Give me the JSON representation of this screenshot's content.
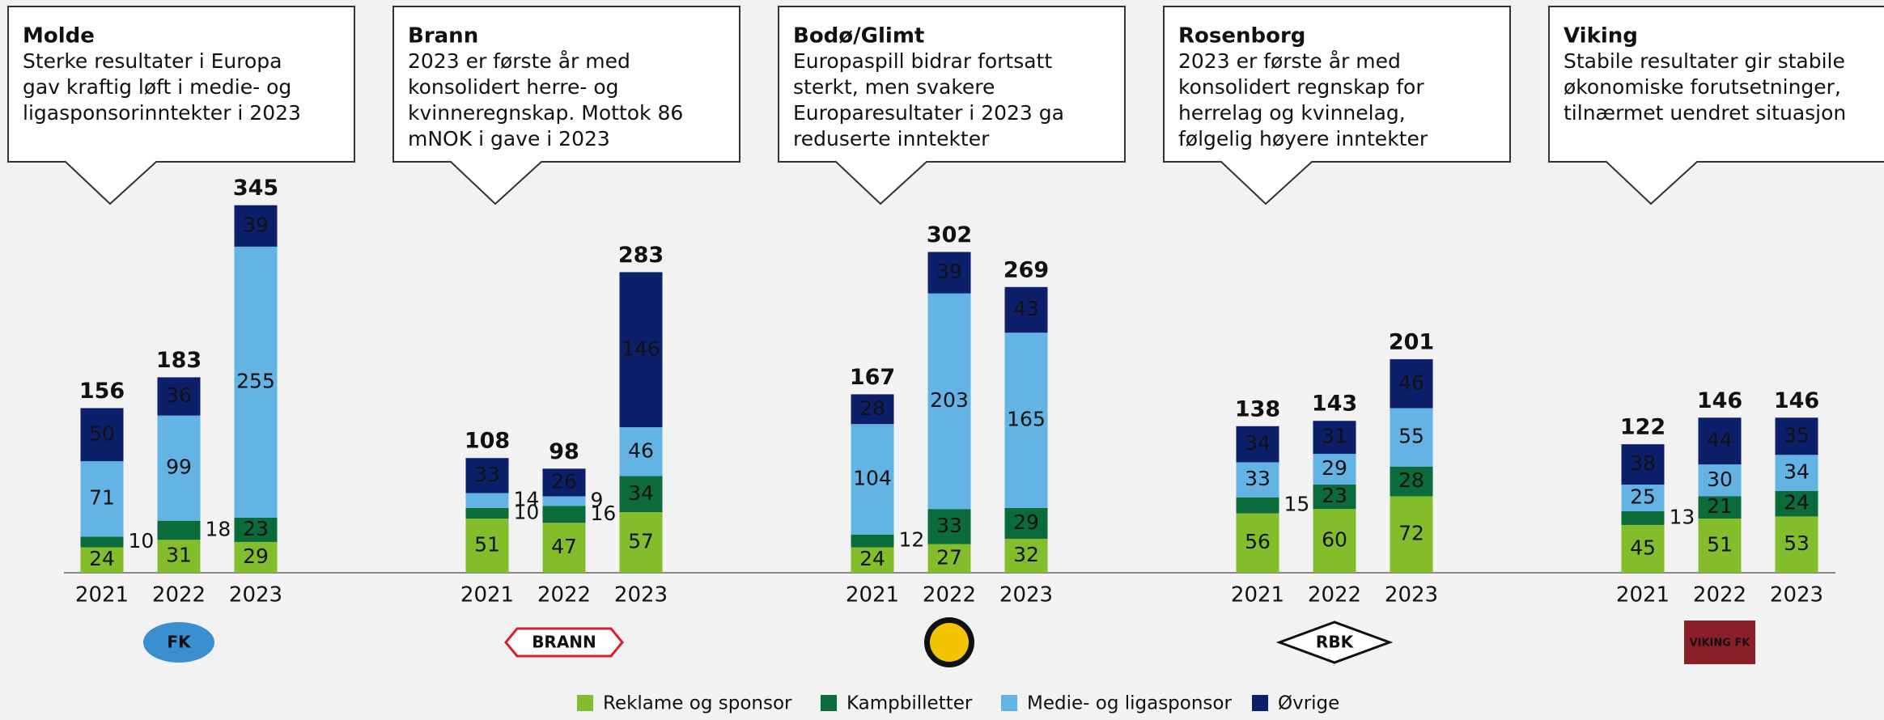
{
  "chart_data": {
    "type": "stacked_bar",
    "series": [
      {
        "name": "Reklame og sponsor",
        "color": "#84bd2b"
      },
      {
        "name": "Kampbilletter",
        "color": "#0b6b3a"
      },
      {
        "name": "Medie- og ligasponsor",
        "color": "#63b3e5"
      },
      {
        "name": "Øvrige",
        "color": "#0c1f6b"
      }
    ],
    "groups": [
      {
        "name": "Molde",
        "note": [
          "Sterke resultater i Europa",
          "gav kraftig løft i medie- og",
          "ligasponsorinntekter i 2023"
        ],
        "logo": "FK",
        "categories": [
          "2021",
          "2022",
          "2023"
        ],
        "totals": [
          156,
          183,
          345
        ],
        "values": [
          [
            24,
            10,
            71,
            50
          ],
          [
            31,
            18,
            99,
            36
          ],
          [
            29,
            23,
            255,
            39
          ]
        ]
      },
      {
        "name": "Brann",
        "note": [
          "2023 er første år med",
          "konsolidert herre- og",
          "kvinneregnskap. Mottok 86",
          "mNOK i gave i 2023"
        ],
        "logo": "BRANN",
        "categories": [
          "2021",
          "2022",
          "2023"
        ],
        "totals": [
          108,
          98,
          283
        ],
        "values": [
          [
            51,
            10,
            14,
            33
          ],
          [
            47,
            16,
            9,
            26
          ],
          [
            57,
            34,
            46,
            146
          ]
        ]
      },
      {
        "name": "Bodø/Glimt",
        "note": [
          "Europaspill bidrar fortsatt",
          "sterkt, men svakere",
          "Europaresultater i 2023 ga",
          "reduserte inntekter"
        ],
        "categories": [
          "2021",
          "2022",
          "2023"
        ],
        "totals": [
          167,
          302,
          269
        ],
        "values": [
          [
            24,
            12,
            104,
            28
          ],
          [
            27,
            33,
            203,
            39
          ],
          [
            32,
            29,
            165,
            43
          ]
        ]
      },
      {
        "name": "Rosenborg",
        "note": [
          "2023 er første år med",
          "konsolidert regnskap for",
          "herrelag og kvinnelag,",
          "følgelig høyere inntekter"
        ],
        "logo": "RBK",
        "categories": [
          "2021",
          "2022",
          "2023"
        ],
        "totals": [
          138,
          143,
          201
        ],
        "values": [
          [
            56,
            15,
            33,
            34
          ],
          [
            60,
            23,
            29,
            31
          ],
          [
            72,
            28,
            55,
            46
          ]
        ]
      },
      {
        "name": "Viking",
        "note": [
          "Stabile resultater gir stabile",
          "økonomiske forutsetninger,",
          "tilnærmet uendret situasjon"
        ],
        "logo": "VIKING FK",
        "categories": [
          "2021",
          "2022",
          "2023"
        ],
        "totals": [
          122,
          146,
          146
        ],
        "values": [
          [
            45,
            13,
            25,
            38
          ],
          [
            51,
            21,
            30,
            44
          ],
          [
            53,
            24,
            34,
            35
          ]
        ]
      }
    ]
  }
}
